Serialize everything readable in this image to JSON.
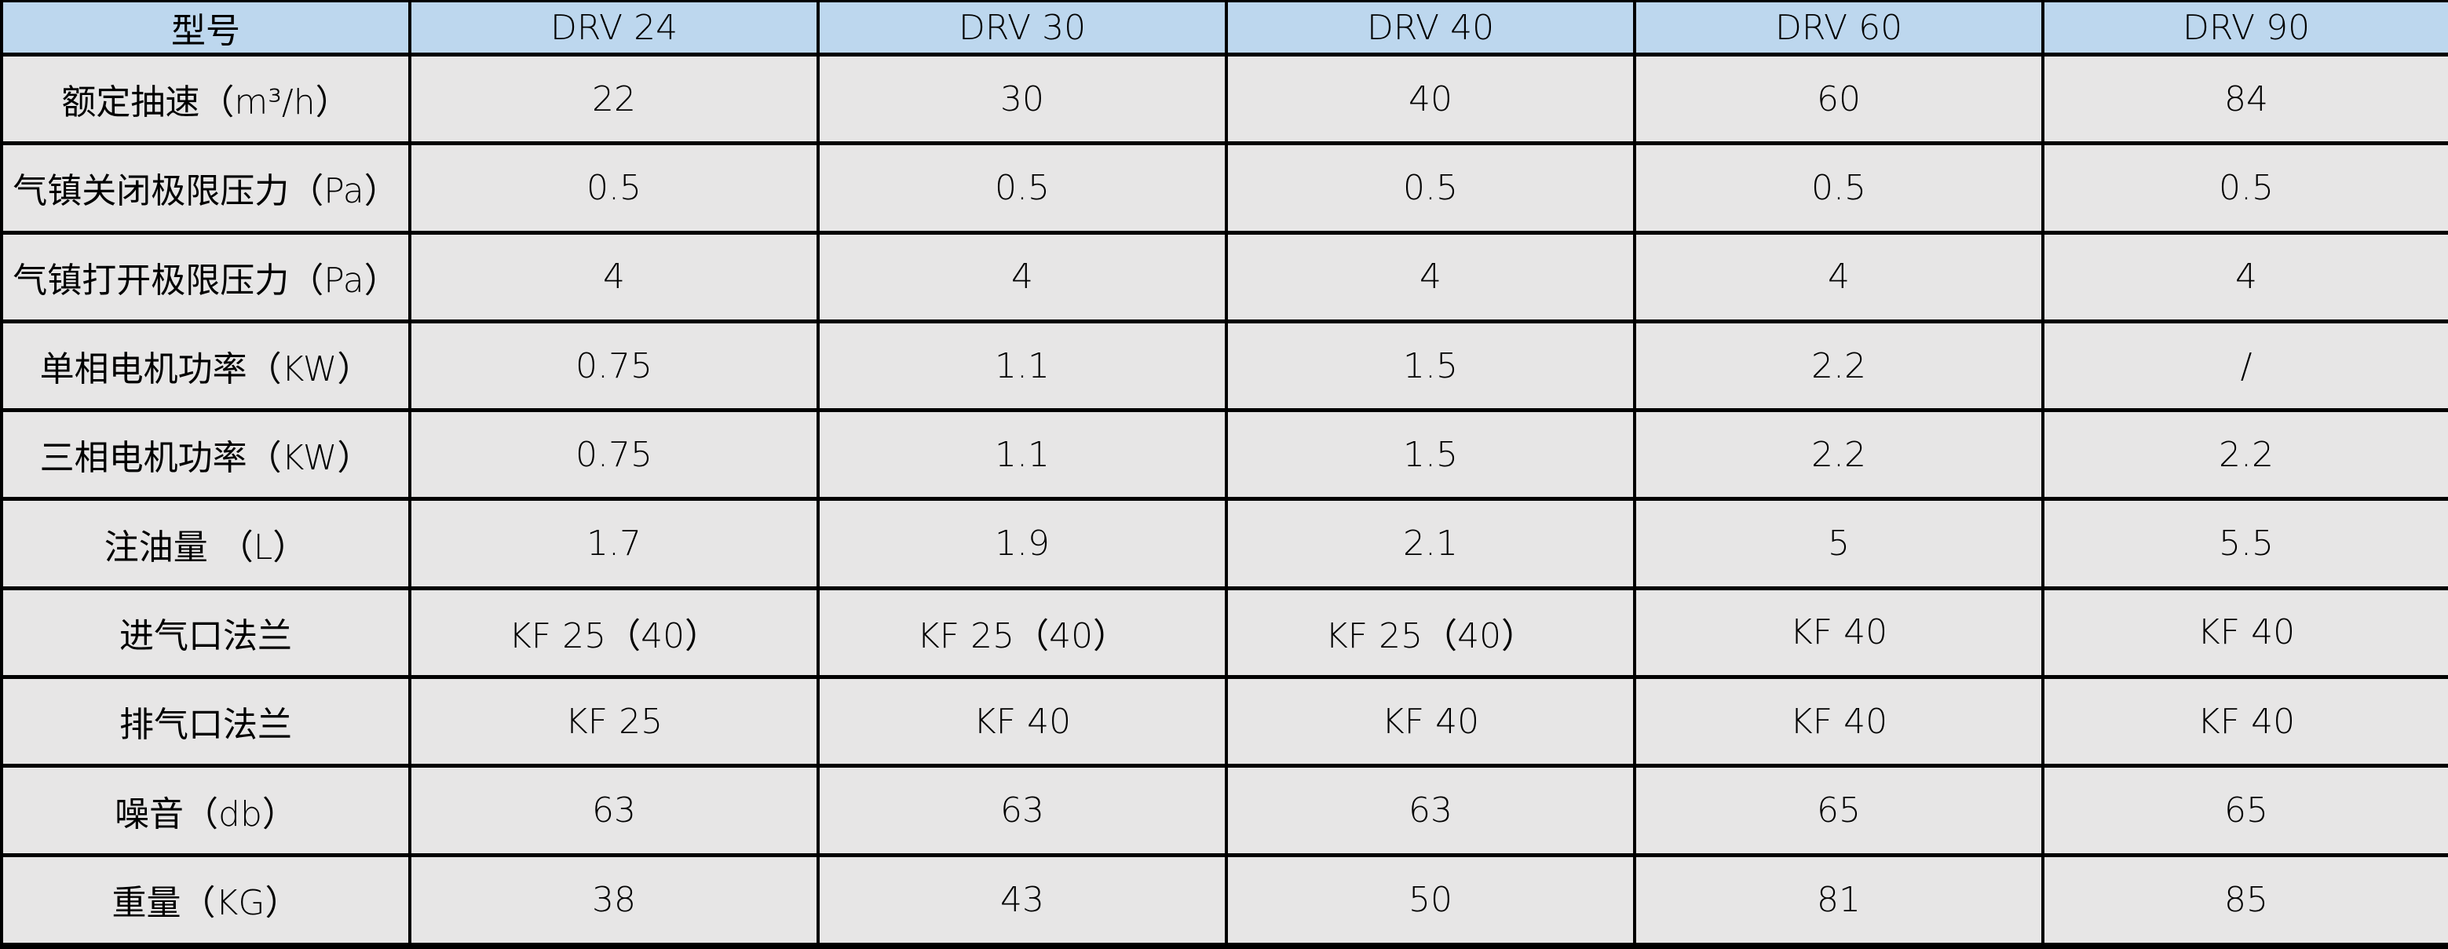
{
  "colors": {
    "header_bg": "#BDD7EE",
    "row_bg": "#E7E6E6",
    "border": "#000000",
    "text": "#000000"
  },
  "chart_data": {
    "type": "table",
    "title": "",
    "columns": [
      "型号",
      "DRV 24",
      "DRV 30",
      "DRV 40",
      "DRV 60",
      "DRV 90"
    ],
    "rows": [
      {
        "label": "额定抽速（m³/h）",
        "values": [
          "22",
          "30",
          "40",
          "60",
          "84"
        ]
      },
      {
        "label": "气镇关闭极限压力（Pa）",
        "values": [
          "0.5",
          "0.5",
          "0.5",
          "0.5",
          "0.5"
        ]
      },
      {
        "label": "气镇打开极限压力（Pa）",
        "values": [
          "4",
          "4",
          "4",
          "4",
          "4"
        ]
      },
      {
        "label": "单相电机功率（KW）",
        "values": [
          "0.75",
          "1.1",
          "1.5",
          "2.2",
          "/"
        ]
      },
      {
        "label": "三相电机功率（KW）",
        "values": [
          "0.75",
          "1.1",
          "1.5",
          "2.2",
          "2.2"
        ]
      },
      {
        "label": "注油量 （L）",
        "values": [
          "1.7",
          "1.9",
          "2.1",
          "5",
          "5.5"
        ]
      },
      {
        "label": "进气口法兰",
        "values": [
          "KF 25（40）",
          "KF 25（40）",
          "KF 25（40）",
          "KF 40",
          "KF 40"
        ]
      },
      {
        "label": "排气口法兰",
        "values": [
          "KF 25",
          "KF 40",
          "KF 40",
          "KF 40",
          "KF 40"
        ]
      },
      {
        "label": "噪音（db）",
        "values": [
          "63",
          "63",
          "63",
          "65",
          "65"
        ]
      },
      {
        "label": "重量（KG）",
        "values": [
          "38",
          "43",
          "50",
          "81",
          "85"
        ]
      }
    ]
  }
}
